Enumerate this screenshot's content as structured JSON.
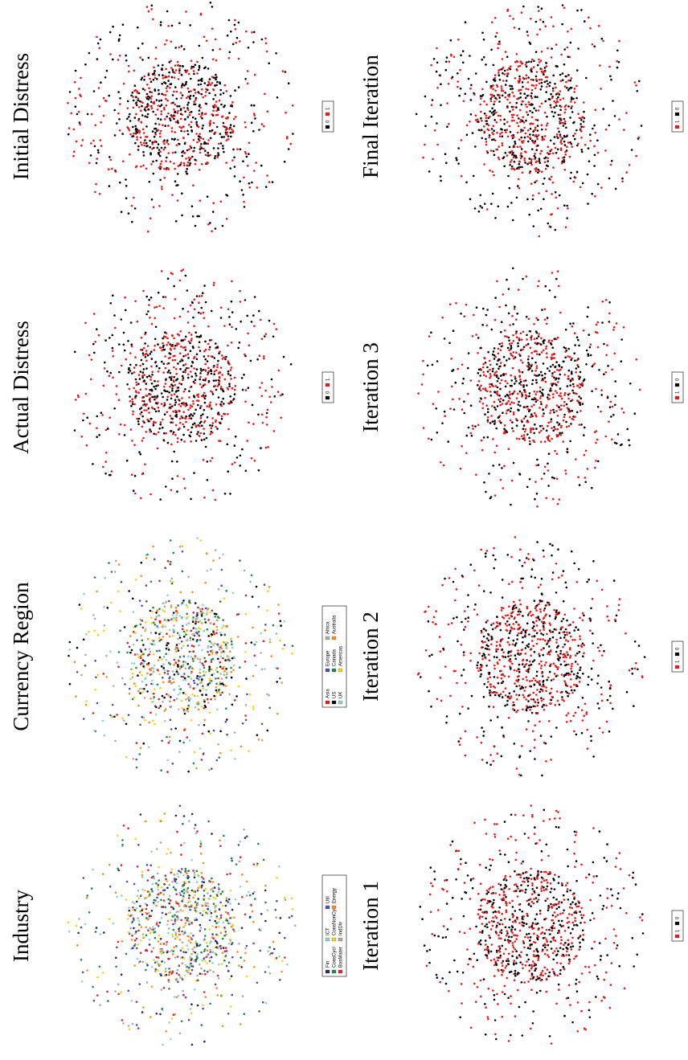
{
  "panels": [
    {
      "title": "Initial Distress",
      "legend": [
        {
          "label": "0",
          "color": "#000000"
        },
        {
          "label": "1",
          "color": "#e41a1c"
        }
      ]
    },
    {
      "title": "Actual Distress",
      "legend": [
        {
          "label": "0",
          "color": "#000000"
        },
        {
          "label": "1",
          "color": "#e41a1c"
        }
      ]
    },
    {
      "title": "Currency Region",
      "legend": [
        {
          "label": "Asia",
          "color": "#e41a1c"
        },
        {
          "label": "US",
          "color": "#000000"
        },
        {
          "label": "UK",
          "color": "#8fd3c8"
        },
        {
          "label": "Europe",
          "color": "#4b4fa3"
        },
        {
          "label": "Canada",
          "color": "#1b8a4a"
        },
        {
          "label": "Americas",
          "color": "#f2d21b"
        },
        {
          "label": "Africa",
          "color": "#a9a9a9"
        },
        {
          "label": "Australia",
          "color": "#f0901e"
        }
      ]
    },
    {
      "title": "Industry",
      "legend": [
        {
          "label": "Fin",
          "color": "#1f2a5a"
        },
        {
          "label": "ConsCycl",
          "color": "#1b8a4a"
        },
        {
          "label": "BasMater",
          "color": "#d7263d"
        },
        {
          "label": "ICT",
          "color": "#8fd3c8"
        },
        {
          "label": "ConsNonCycl",
          "color": "#f2d21b"
        },
        {
          "label": "IndDiv",
          "color": "#a9a9a9"
        },
        {
          "label": "Util",
          "color": "#4b4fa3"
        },
        {
          "label": "Energy",
          "color": "#f0901e"
        }
      ]
    },
    {
      "title": "Final Iteration",
      "legend": [
        {
          "label": "1",
          "color": "#e41a1c"
        },
        {
          "label": "0",
          "color": "#000000"
        }
      ]
    },
    {
      "title": "Iteration 3",
      "legend": [
        {
          "label": "1",
          "color": "#e41a1c"
        },
        {
          "label": "0",
          "color": "#000000"
        }
      ]
    },
    {
      "title": "Iteration 2",
      "legend": [
        {
          "label": "1",
          "color": "#e41a1c"
        },
        {
          "label": "0",
          "color": "#000000"
        }
      ]
    },
    {
      "title": "Iteration 1",
      "legend": [
        {
          "label": "1",
          "color": "#e41a1c"
        },
        {
          "label": "0",
          "color": "#000000"
        }
      ]
    }
  ]
}
